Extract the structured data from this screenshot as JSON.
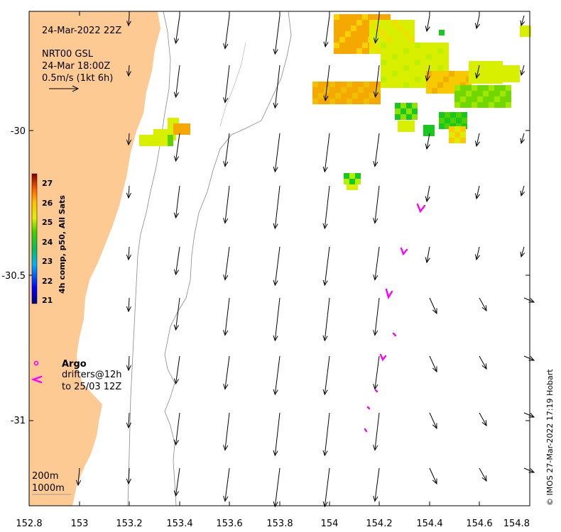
{
  "map": {
    "title_date": "24-Mar-2022 22Z",
    "product": "NRT00 GSL",
    "current_time": "24-Mar 18:00Z",
    "scale_label": "0.5m/s (1kt 6h)",
    "argo_label": "Argo",
    "drifters_line1": "drifters@12h",
    "drifters_line2": "to 25/03 12Z",
    "contour_labels": [
      "200m",
      "1000m"
    ],
    "credit": "© IMOS 27-Mar-2022 17:19 Hobart",
    "colorbar_label": "4h comp, p50, All Sats",
    "colorbar_ticks": [
      "27",
      "26",
      "25",
      "24",
      "23",
      "22",
      "21"
    ],
    "colorbar_range": [
      20.7,
      27.3
    ],
    "x_ticks": [
      "152.8",
      "153",
      "153.2",
      "153.4",
      "153.6",
      "153.8",
      "154",
      "154.2",
      "154.4",
      "154.6",
      "154.8"
    ],
    "y_ticks": [
      "-30",
      "-30.5",
      "-31"
    ],
    "colors": {
      "land": "#fdca94",
      "argo": "#ff00ff",
      "sst_warm": "#f5a800",
      "sst_mid": "#d8f000",
      "sst_cool": "#18c820"
    }
  }
}
